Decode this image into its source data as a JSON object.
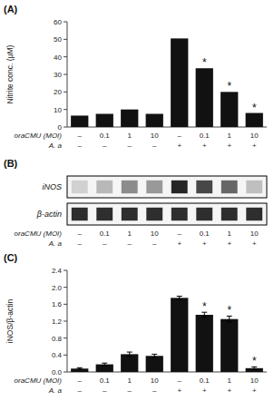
{
  "chart_data": [
    {
      "type": "bar",
      "title": "(A)",
      "categories": [
        [
          "–",
          "–"
        ],
        [
          "0.1",
          "–"
        ],
        [
          "1",
          "–"
        ],
        [
          "10",
          "–"
        ],
        [
          "–",
          "+"
        ],
        [
          "0.1",
          "+"
        ],
        [
          "1",
          "+"
        ],
        [
          "10",
          "+"
        ]
      ],
      "xlabel": [
        "oraCMU (MOI)",
        "A. a"
      ],
      "ylabel": "Nitrite conc. (μM)",
      "values": [
        6.5,
        7.5,
        10.0,
        7.5,
        50.5,
        33.5,
        20.0,
        8.0
      ],
      "color": "#111111",
      "ylim": [
        0,
        60
      ],
      "yticks": [
        0,
        10,
        20,
        30,
        40,
        50,
        60
      ],
      "grid": false,
      "annotations": [
        {
          "category": 5,
          "text": "*"
        },
        {
          "category": 6,
          "text": "*"
        },
        {
          "category": 7,
          "text": "*"
        }
      ]
    },
    {
      "type": "heatmap",
      "title": "(B)",
      "categories": [
        [
          "–",
          "–"
        ],
        [
          "0.1",
          "–"
        ],
        [
          "1",
          "–"
        ],
        [
          "10",
          "–"
        ],
        [
          "–",
          "+"
        ],
        [
          "0.1",
          "+"
        ],
        [
          "1",
          "+"
        ],
        [
          "10",
          "+"
        ]
      ],
      "xlabel": [
        "oraCMU (MOI)",
        "A. a"
      ],
      "rows": [
        "iNOS",
        "β-actin"
      ],
      "cells": [
        [
          0.82,
          0.72,
          0.55,
          0.6,
          0.15,
          0.28,
          0.4,
          0.75
        ],
        [
          0.18,
          0.18,
          0.18,
          0.18,
          0.18,
          0.18,
          0.18,
          0.18
        ]
      ]
    },
    {
      "type": "bar",
      "title": "(C)",
      "categories": [
        [
          "–",
          "–"
        ],
        [
          "0.1",
          "–"
        ],
        [
          "1",
          "–"
        ],
        [
          "10",
          "–"
        ],
        [
          "–",
          "+"
        ],
        [
          "0.1",
          "+"
        ],
        [
          "1",
          "+"
        ],
        [
          "10",
          "+"
        ]
      ],
      "xlabel": [
        "oraCMU (MOI)",
        "A. a"
      ],
      "ylabel": "iNOS/β-actin",
      "values": [
        0.08,
        0.18,
        0.42,
        0.38,
        1.75,
        1.35,
        1.25,
        0.09
      ],
      "errors": [
        0.02,
        0.03,
        0.05,
        0.04,
        0.04,
        0.06,
        0.07,
        0.03
      ],
      "color": "#111111",
      "ylim": [
        0,
        2.4
      ],
      "yticks": [
        {
          "value": 0,
          "label": "0.0"
        },
        0.4,
        0.8,
        1.2,
        1.6,
        {
          "value": 2.0,
          "label": "2.0"
        },
        2.4
      ],
      "grid": false,
      "annotations": [
        {
          "category": 5,
          "text": "*"
        },
        {
          "category": 6,
          "text": "*"
        },
        {
          "category": 7,
          "text": "*"
        }
      ]
    }
  ]
}
